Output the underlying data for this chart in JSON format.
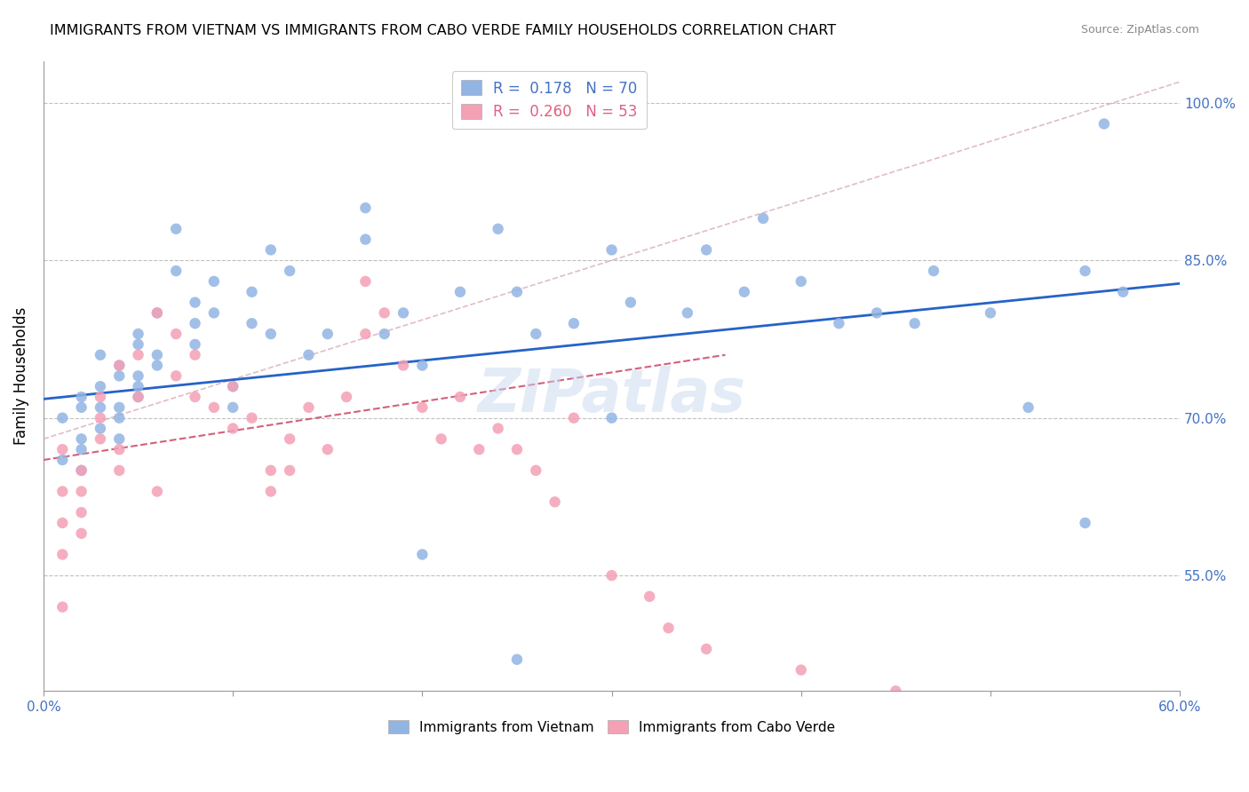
{
  "title": "IMMIGRANTS FROM VIETNAM VS IMMIGRANTS FROM CABO VERDE FAMILY HOUSEHOLDS CORRELATION CHART",
  "source": "Source: ZipAtlas.com",
  "ylabel": "Family Households",
  "yticks": [
    "55.0%",
    "70.0%",
    "85.0%",
    "100.0%"
  ],
  "ytick_vals": [
    0.55,
    0.7,
    0.85,
    1.0
  ],
  "xlim": [
    0.0,
    0.6
  ],
  "ylim": [
    0.44,
    1.04
  ],
  "legend1_R": "0.178",
  "legend1_N": "70",
  "legend2_R": "0.260",
  "legend2_N": "53",
  "color_vietnam": "#92b4e3",
  "color_caboverde": "#f4a0b5",
  "trendline_vietnam_color": "#2563c7",
  "trendline_caboverde_color": "#d4607a",
  "refline_color": "#d4a0b0",
  "watermark": "ZIPatlas",
  "vietnam_x": [
    0.02,
    0.01,
    0.01,
    0.02,
    0.02,
    0.02,
    0.02,
    0.03,
    0.03,
    0.03,
    0.03,
    0.04,
    0.04,
    0.04,
    0.04,
    0.04,
    0.05,
    0.05,
    0.05,
    0.05,
    0.05,
    0.06,
    0.06,
    0.06,
    0.07,
    0.07,
    0.08,
    0.08,
    0.08,
    0.09,
    0.09,
    0.1,
    0.1,
    0.11,
    0.11,
    0.12,
    0.12,
    0.13,
    0.14,
    0.15,
    0.17,
    0.17,
    0.18,
    0.19,
    0.2,
    0.22,
    0.24,
    0.25,
    0.26,
    0.28,
    0.3,
    0.31,
    0.34,
    0.35,
    0.37,
    0.38,
    0.4,
    0.42,
    0.44,
    0.46,
    0.47,
    0.5,
    0.52,
    0.55,
    0.57,
    0.2,
    0.3,
    0.25,
    0.55,
    0.56
  ],
  "vietnam_y": [
    0.68,
    0.66,
    0.7,
    0.71,
    0.67,
    0.65,
    0.72,
    0.76,
    0.73,
    0.71,
    0.69,
    0.74,
    0.71,
    0.7,
    0.68,
    0.75,
    0.77,
    0.73,
    0.72,
    0.78,
    0.74,
    0.8,
    0.76,
    0.75,
    0.88,
    0.84,
    0.81,
    0.79,
    0.77,
    0.83,
    0.8,
    0.73,
    0.71,
    0.82,
    0.79,
    0.78,
    0.86,
    0.84,
    0.76,
    0.78,
    0.9,
    0.87,
    0.78,
    0.8,
    0.75,
    0.82,
    0.88,
    0.82,
    0.78,
    0.79,
    0.86,
    0.81,
    0.8,
    0.86,
    0.82,
    0.89,
    0.83,
    0.79,
    0.8,
    0.79,
    0.84,
    0.8,
    0.71,
    0.84,
    0.82,
    0.57,
    0.7,
    0.47,
    0.6,
    0.98
  ],
  "caboverde_x": [
    0.01,
    0.01,
    0.01,
    0.01,
    0.01,
    0.02,
    0.02,
    0.02,
    0.02,
    0.03,
    0.03,
    0.03,
    0.04,
    0.04,
    0.04,
    0.05,
    0.05,
    0.06,
    0.06,
    0.07,
    0.07,
    0.08,
    0.08,
    0.09,
    0.1,
    0.1,
    0.11,
    0.12,
    0.12,
    0.13,
    0.13,
    0.14,
    0.15,
    0.16,
    0.17,
    0.17,
    0.18,
    0.19,
    0.2,
    0.21,
    0.22,
    0.23,
    0.24,
    0.25,
    0.26,
    0.27,
    0.28,
    0.3,
    0.32,
    0.33,
    0.35,
    0.4,
    0.45
  ],
  "caboverde_y": [
    0.67,
    0.63,
    0.6,
    0.57,
    0.52,
    0.65,
    0.63,
    0.61,
    0.59,
    0.72,
    0.7,
    0.68,
    0.75,
    0.67,
    0.65,
    0.76,
    0.72,
    0.8,
    0.63,
    0.78,
    0.74,
    0.76,
    0.72,
    0.71,
    0.73,
    0.69,
    0.7,
    0.65,
    0.63,
    0.68,
    0.65,
    0.71,
    0.67,
    0.72,
    0.83,
    0.78,
    0.8,
    0.75,
    0.71,
    0.68,
    0.72,
    0.67,
    0.69,
    0.67,
    0.65,
    0.62,
    0.7,
    0.55,
    0.53,
    0.5,
    0.48,
    0.46,
    0.44
  ],
  "vietnam_trend_x": [
    0.0,
    0.6
  ],
  "vietnam_trend_y": [
    0.718,
    0.828
  ],
  "caboverde_trend_x": [
    0.0,
    0.36
  ],
  "caboverde_trend_y": [
    0.66,
    0.76
  ],
  "refline_x": [
    0.0,
    0.6
  ],
  "refline_y": [
    0.68,
    1.02
  ]
}
